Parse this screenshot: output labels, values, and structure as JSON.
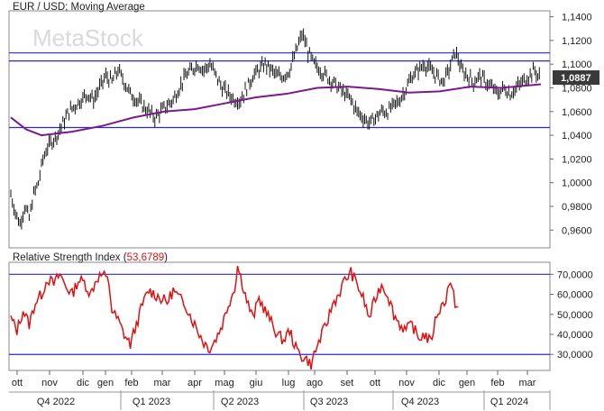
{
  "chart_data": [
    {
      "type": "candlestick",
      "title": "EUR / USD; Moving Average",
      "watermark": "MetaStock",
      "ylim": [
        0.945,
        1.145
      ],
      "y_ticks": [
        "1,1400",
        "1,1200",
        "1,1000",
        "1,0800",
        "1,0600",
        "1,0400",
        "1,0200",
        "1,0000",
        "0,9800",
        "0,9600"
      ],
      "y_tick_values": [
        1.14,
        1.12,
        1.1,
        1.08,
        1.06,
        1.04,
        1.02,
        1.0,
        0.98,
        0.96
      ],
      "last_price_label": "1,0887",
      "last_price": 1.0887,
      "horizontal_lines": [
        1.1095,
        1.1027,
        1.0465
      ],
      "colors": {
        "price": "#111111",
        "ma": "#7a1a8a",
        "hline": "#2a2acc",
        "badge": "#3a3a3a"
      },
      "price_points": [
        [
          0,
          0.99
        ],
        [
          3,
          0.975
        ],
        [
          6,
          0.965
        ],
        [
          9,
          0.98
        ],
        [
          12,
          0.97
        ],
        [
          15,
          0.99
        ],
        [
          18,
          1.0
        ],
        [
          21,
          1.02
        ],
        [
          24,
          1.03
        ],
        [
          27,
          1.035
        ],
        [
          30,
          1.04
        ],
        [
          34,
          1.05
        ],
        [
          38,
          1.06
        ],
        [
          42,
          1.065
        ],
        [
          46,
          1.07
        ],
        [
          50,
          1.075
        ],
        [
          54,
          1.07
        ],
        [
          58,
          1.08
        ],
        [
          62,
          1.09
        ],
        [
          66,
          1.085
        ],
        [
          70,
          1.095
        ],
        [
          74,
          1.085
        ],
        [
          78,
          1.075
        ],
        [
          82,
          1.07
        ],
        [
          86,
          1.065
        ],
        [
          90,
          1.06
        ],
        [
          94,
          1.055
        ],
        [
          98,
          1.06
        ],
        [
          102,
          1.065
        ],
        [
          106,
          1.07
        ],
        [
          110,
          1.08
        ],
        [
          114,
          1.09
        ],
        [
          118,
          1.095
        ],
        [
          122,
          1.1
        ],
        [
          126,
          1.095
        ],
        [
          130,
          1.1
        ],
        [
          134,
          1.09
        ],
        [
          138,
          1.08
        ],
        [
          142,
          1.075
        ],
        [
          146,
          1.07
        ],
        [
          150,
          1.07
        ],
        [
          154,
          1.08
        ],
        [
          158,
          1.09
        ],
        [
          162,
          1.095
        ],
        [
          166,
          1.1
        ],
        [
          170,
          1.095
        ],
        [
          174,
          1.09
        ],
        [
          178,
          1.09
        ],
        [
          182,
          1.095
        ],
        [
          186,
          1.11
        ],
        [
          190,
          1.125
        ],
        [
          192,
          1.12
        ],
        [
          194,
          1.11
        ],
        [
          198,
          1.1
        ],
        [
          202,
          1.095
        ],
        [
          206,
          1.09
        ],
        [
          210,
          1.085
        ],
        [
          214,
          1.08
        ],
        [
          218,
          1.075
        ],
        [
          222,
          1.07
        ],
        [
          226,
          1.06
        ],
        [
          230,
          1.055
        ],
        [
          234,
          1.05
        ],
        [
          238,
          1.055
        ],
        [
          242,
          1.06
        ],
        [
          246,
          1.06
        ],
        [
          250,
          1.065
        ],
        [
          254,
          1.07
        ],
        [
          258,
          1.08
        ],
        [
          262,
          1.09
        ],
        [
          266,
          1.095
        ],
        [
          270,
          1.1
        ],
        [
          274,
          1.095
        ],
        [
          278,
          1.09
        ],
        [
          282,
          1.085
        ],
        [
          286,
          1.095
        ],
        [
          290,
          1.11
        ],
        [
          292,
          1.105
        ],
        [
          294,
          1.095
        ],
        [
          298,
          1.09
        ],
        [
          302,
          1.085
        ],
        [
          306,
          1.09
        ],
        [
          310,
          1.085
        ],
        [
          314,
          1.08
        ],
        [
          318,
          1.075
        ],
        [
          322,
          1.08
        ],
        [
          326,
          1.075
        ],
        [
          330,
          1.08
        ],
        [
          334,
          1.085
        ],
        [
          338,
          1.09
        ],
        [
          342,
          1.095
        ],
        [
          344,
          1.09
        ],
        [
          346,
          1.0887
        ]
      ],
      "ma_points": [
        [
          0,
          1.055
        ],
        [
          10,
          1.045
        ],
        [
          20,
          1.04
        ],
        [
          40,
          1.043
        ],
        [
          60,
          1.048
        ],
        [
          80,
          1.055
        ],
        [
          100,
          1.06
        ],
        [
          120,
          1.062
        ],
        [
          140,
          1.067
        ],
        [
          160,
          1.072
        ],
        [
          180,
          1.075
        ],
        [
          200,
          1.08
        ],
        [
          220,
          1.081
        ],
        [
          240,
          1.079
        ],
        [
          260,
          1.076
        ],
        [
          280,
          1.077
        ],
        [
          300,
          1.081
        ],
        [
          320,
          1.08
        ],
        [
          346,
          1.083
        ]
      ]
    },
    {
      "type": "line",
      "title": "Relative Strength Index",
      "value_label": "53,6789",
      "last_value": 53.6789,
      "ylim": [
        22,
        76
      ],
      "y_ticks": [
        "70,0000",
        "60,0000",
        "50,0000",
        "40,0000",
        "30,0000"
      ],
      "y_tick_values": [
        70,
        60,
        50,
        40,
        30
      ],
      "horizontal_lines": [
        70,
        30
      ],
      "colors": {
        "line": "#dd1111",
        "hline": "#2a2acc"
      },
      "points": [
        [
          0,
          48
        ],
        [
          4,
          42
        ],
        [
          8,
          52
        ],
        [
          12,
          45
        ],
        [
          16,
          56
        ],
        [
          20,
          60
        ],
        [
          24,
          68
        ],
        [
          28,
          65
        ],
        [
          32,
          70
        ],
        [
          36,
          64
        ],
        [
          40,
          60
        ],
        [
          44,
          67
        ],
        [
          48,
          66
        ],
        [
          52,
          60
        ],
        [
          56,
          68
        ],
        [
          60,
          70
        ],
        [
          64,
          66
        ],
        [
          66,
          52
        ],
        [
          70,
          47
        ],
        [
          74,
          40
        ],
        [
          78,
          35
        ],
        [
          82,
          45
        ],
        [
          86,
          55
        ],
        [
          90,
          62
        ],
        [
          94,
          60
        ],
        [
          98,
          58
        ],
        [
          102,
          56
        ],
        [
          106,
          62
        ],
        [
          110,
          58
        ],
        [
          114,
          55
        ],
        [
          118,
          48
        ],
        [
          122,
          42
        ],
        [
          126,
          36
        ],
        [
          130,
          33
        ],
        [
          134,
          38
        ],
        [
          138,
          45
        ],
        [
          142,
          55
        ],
        [
          146,
          63
        ],
        [
          148,
          74
        ],
        [
          150,
          69
        ],
        [
          154,
          57
        ],
        [
          158,
          48
        ],
        [
          162,
          58
        ],
        [
          166,
          52
        ],
        [
          170,
          46
        ],
        [
          174,
          40
        ],
        [
          178,
          37
        ],
        [
          182,
          42
        ],
        [
          186,
          33
        ],
        [
          190,
          29
        ],
        [
          194,
          27
        ],
        [
          196,
          24
        ],
        [
          198,
          30
        ],
        [
          202,
          38
        ],
        [
          206,
          45
        ],
        [
          210,
          55
        ],
        [
          214,
          60
        ],
        [
          218,
          67
        ],
        [
          222,
          71
        ],
        [
          226,
          65
        ],
        [
          230,
          58
        ],
        [
          234,
          48
        ],
        [
          238,
          58
        ],
        [
          242,
          65
        ],
        [
          246,
          60
        ],
        [
          250,
          50
        ],
        [
          254,
          45
        ],
        [
          258,
          42
        ],
        [
          262,
          45
        ],
        [
          266,
          38
        ],
        [
          270,
          40
        ],
        [
          274,
          36
        ],
        [
          278,
          50
        ],
        [
          282,
          55
        ],
        [
          284,
          58
        ],
        [
          286,
          66
        ],
        [
          288,
          62
        ],
        [
          290,
          56
        ],
        [
          292,
          53.6789
        ]
      ]
    }
  ],
  "x_axis": {
    "months": [
      "ott",
      "nov",
      "dic",
      "gen",
      "feb",
      "mar",
      "apr",
      "mag",
      "giu",
      "lug",
      "ago",
      "set",
      "ott",
      "nov",
      "dic",
      "gen",
      "feb",
      "mar"
    ],
    "quarters": [
      "Q4 2022",
      "Q1 2023",
      "Q2 2023",
      "Q3 2023",
      "Q4 2023",
      "Q1 2024"
    ]
  }
}
